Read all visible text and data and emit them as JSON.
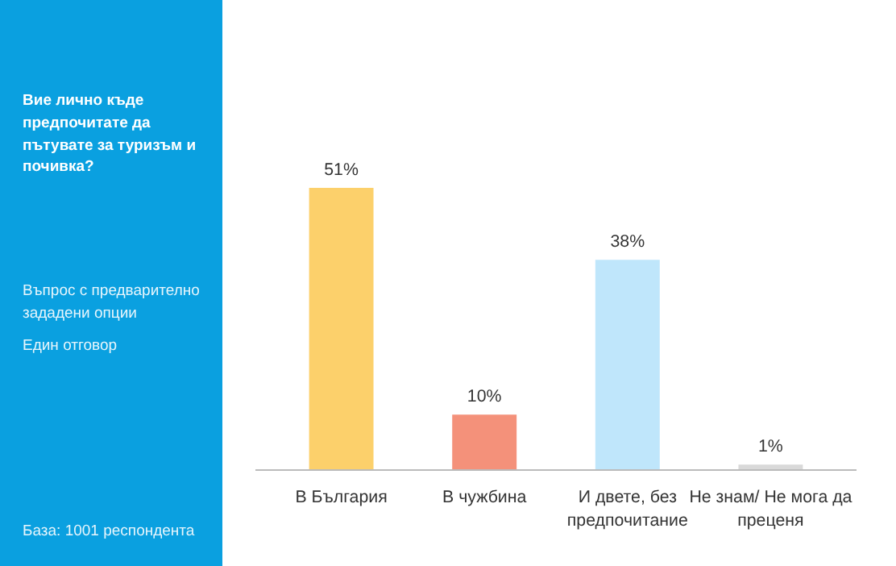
{
  "chart_data": {
    "type": "bar",
    "title": "Вие лично къде предпочитате да пътувате за туризъм и почивка?",
    "categories": [
      "В България",
      "В чужбина",
      "И двете, без предпочитание",
      "Не знам/ Не мога да преценя"
    ],
    "values": [
      51,
      10,
      38,
      1
    ],
    "colors": [
      "#fcd06b",
      "#f4917a",
      "#bfe6fb",
      "#d9d9d9"
    ],
    "value_labels": [
      "51%",
      "10%",
      "38%",
      "1%"
    ],
    "grid": false,
    "annotations": [
      "Въпрос с предварително зададени опции",
      "Един отговор",
      "База:  1001 респондента"
    ]
  }
}
